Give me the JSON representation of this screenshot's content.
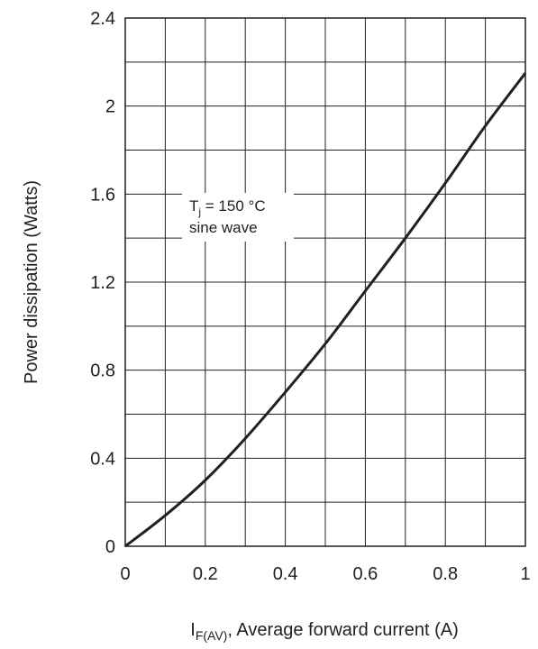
{
  "chart_data": {
    "type": "line",
    "title": "",
    "xlabel": {
      "main": "I",
      "subscript": "F(AV)",
      "rest": ", Average forward current (A)"
    },
    "ylabel": "Power dissipation (Watts)",
    "xlim": [
      0,
      1
    ],
    "ylim": [
      0,
      2.4
    ],
    "x_ticks": [
      "0",
      "0.2",
      "0.4",
      "0.6",
      "0.8",
      "1"
    ],
    "y_ticks": [
      "0",
      "0.4",
      "0.8",
      "1.2",
      "1.6",
      "2",
      "2.4"
    ],
    "grid": true,
    "annotation": {
      "line1_main": "T",
      "line1_sub": "j",
      "line1_rest": " = 150 °C",
      "line2": "sine wave"
    },
    "series": [
      {
        "x": [
          0,
          0.1,
          0.2,
          0.3,
          0.4,
          0.5,
          0.6,
          0.7,
          0.8,
          0.9,
          1.0
        ],
        "y": [
          0,
          0.14,
          0.3,
          0.49,
          0.7,
          0.92,
          1.16,
          1.4,
          1.65,
          1.91,
          2.15
        ]
      }
    ]
  }
}
